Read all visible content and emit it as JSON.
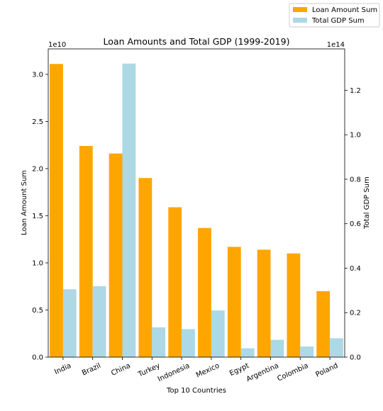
{
  "chart_data": {
    "type": "bar",
    "title": "Loan Amounts and Total GDP (1999-2019)",
    "xlabel": "Top 10 Countries",
    "categories": [
      "India",
      "Brazil",
      "China",
      "Turkey",
      "Indonesia",
      "Mexico",
      "Egypt",
      "Argentina",
      "Colombia",
      "Poland"
    ],
    "series": [
      {
        "name": "Loan Amount Sum",
        "axis": "left",
        "color": "#ffa500",
        "values": [
          31100000000,
          22400000000,
          21600000000,
          19000000000,
          15900000000,
          13700000000,
          11700000000,
          11400000000,
          11000000000,
          7000000000
        ]
      },
      {
        "name": "Total GDP Sum",
        "axis": "right",
        "color": "#add8e6",
        "values": [
          30500000000000,
          31900000000000,
          132000000000000,
          13400000000000,
          12600000000000,
          21000000000000,
          4000000000000,
          7800000000000,
          4800000000000,
          8500000000000
        ]
      }
    ],
    "left_axis": {
      "label": "Loan Amount Sum",
      "offset_text": "1e10",
      "scale": 10000000000,
      "ylim": [
        0,
        32700000000
      ],
      "ticks": [
        0,
        5000000000,
        10000000000,
        15000000000,
        20000000000,
        25000000000,
        30000000000
      ],
      "tick_labels": [
        "0.0",
        "0.5",
        "1.0",
        "1.5",
        "2.0",
        "2.5",
        "3.0"
      ]
    },
    "right_axis": {
      "label": "Total GDP Sum",
      "offset_text": "1e14",
      "scale": 100000000000000,
      "ylim": [
        0,
        138600000000000
      ],
      "ticks": [
        0,
        20000000000000,
        40000000000000,
        60000000000000,
        80000000000000,
        100000000000000,
        120000000000000
      ],
      "tick_labels": [
        "0.0",
        "0.2",
        "0.4",
        "0.6",
        "0.8",
        "1.0",
        "1.2"
      ]
    },
    "grid": false,
    "legend_position": "top-right, outside plot"
  }
}
